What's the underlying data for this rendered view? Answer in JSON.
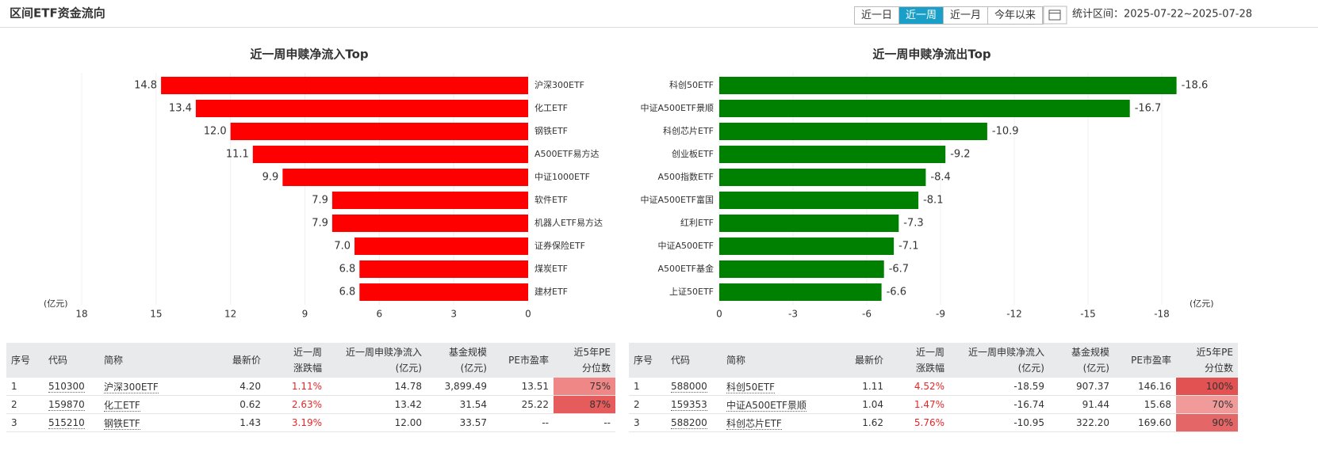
{
  "header": {
    "title": "区间ETF资金流向",
    "tabs": [
      "近一日",
      "近一周",
      "近一月",
      "今年以来"
    ],
    "active_tab": 1,
    "period": "统计区间：2025-07-22~2025-07-28"
  },
  "chart_data": [
    {
      "type": "bar",
      "orientation": "horizontal",
      "title": "近一周申赎净流入Top",
      "categories": [
        "沪深300ETF",
        "化工ETF",
        "钢铁ETF",
        "A500ETF易方达",
        "中证1000ETF",
        "软件ETF",
        "机器人ETF易方达",
        "证券保险ETF",
        "煤炭ETF",
        "建材ETF"
      ],
      "values": [
        14.8,
        13.4,
        12.0,
        11.1,
        9.9,
        7.9,
        7.9,
        7.0,
        6.8,
        6.8
      ],
      "value_labels": [
        "14.8",
        "13.4",
        "12.0",
        "11.1",
        "9.9",
        "7.9",
        "7.9",
        "7.0",
        "6.8",
        "6.8"
      ],
      "color": "#ff0000",
      "xlim": [
        18,
        0
      ],
      "xticks": [
        18,
        15,
        12,
        9,
        6,
        3,
        0
      ],
      "xlabel": "(亿元)",
      "grid": true
    },
    {
      "type": "bar",
      "orientation": "horizontal",
      "title": "近一周申赎净流出Top",
      "categories": [
        "科创50ETF",
        "中证A500ETF景顺",
        "科创芯片ETF",
        "创业板ETF",
        "A500指数ETF",
        "中证A500ETF富国",
        "红利ETF",
        "中证A500ETF",
        "A500ETF基金",
        "上证50ETF"
      ],
      "values": [
        -18.6,
        -16.7,
        -10.9,
        -9.2,
        -8.4,
        -8.1,
        -7.3,
        -7.1,
        -6.7,
        -6.6
      ],
      "color": "#008000",
      "xlim": [
        0,
        -18
      ],
      "xticks": [
        0,
        -3,
        -6,
        -9,
        -12,
        -15,
        -18
      ],
      "xlabel": "(亿元)",
      "grid": true
    }
  ],
  "tables": [
    {
      "columns": [
        [
          "序号"
        ],
        [
          "代码"
        ],
        [
          "简称"
        ],
        [
          "最新价"
        ],
        [
          "近一周",
          "涨跌幅"
        ],
        [
          "近一周申赎净流入",
          "(亿元)"
        ],
        [
          "基金规模",
          "(亿元)"
        ],
        [
          "PE市盈率"
        ],
        [
          "近5年PE",
          "分位数"
        ]
      ],
      "rows": [
        [
          "1",
          "510300",
          "沪深300ETF",
          "4.20",
          "1.11%",
          "14.78",
          "3,899.49",
          "13.51",
          "75%"
        ],
        [
          "2",
          "159870",
          "化工ETF",
          "0.62",
          "2.63%",
          "13.42",
          "31.54",
          "25.22",
          "87%"
        ],
        [
          "3",
          "515210",
          "钢铁ETF",
          "1.43",
          "3.19%",
          "12.00",
          "33.57",
          "--",
          "--"
        ]
      ],
      "percentile_colors": [
        "#f08787",
        "#e65c5c",
        null
      ]
    },
    {
      "columns": [
        [
          "序号"
        ],
        [
          "代码"
        ],
        [
          "简称"
        ],
        [
          "最新价"
        ],
        [
          "近一周",
          "涨跌幅"
        ],
        [
          "近一周申赎净流入",
          "(亿元)"
        ],
        [
          "基金规模",
          "(亿元)"
        ],
        [
          "PE市盈率"
        ],
        [
          "近5年PE",
          "分位数"
        ]
      ],
      "rows": [
        [
          "1",
          "588000",
          "科创50ETF",
          "1.11",
          "4.52%",
          "-18.59",
          "907.37",
          "146.16",
          "100%"
        ],
        [
          "2",
          "159353",
          "中证A500ETF景顺",
          "1.04",
          "1.47%",
          "-16.74",
          "91.44",
          "15.68",
          "70%"
        ],
        [
          "3",
          "588200",
          "科创芯片ETF",
          "1.62",
          "5.76%",
          "-10.95",
          "322.20",
          "169.60",
          "90%"
        ]
      ],
      "percentile_colors": [
        "#e35252",
        "#f09a9a",
        "#e46666"
      ]
    }
  ]
}
